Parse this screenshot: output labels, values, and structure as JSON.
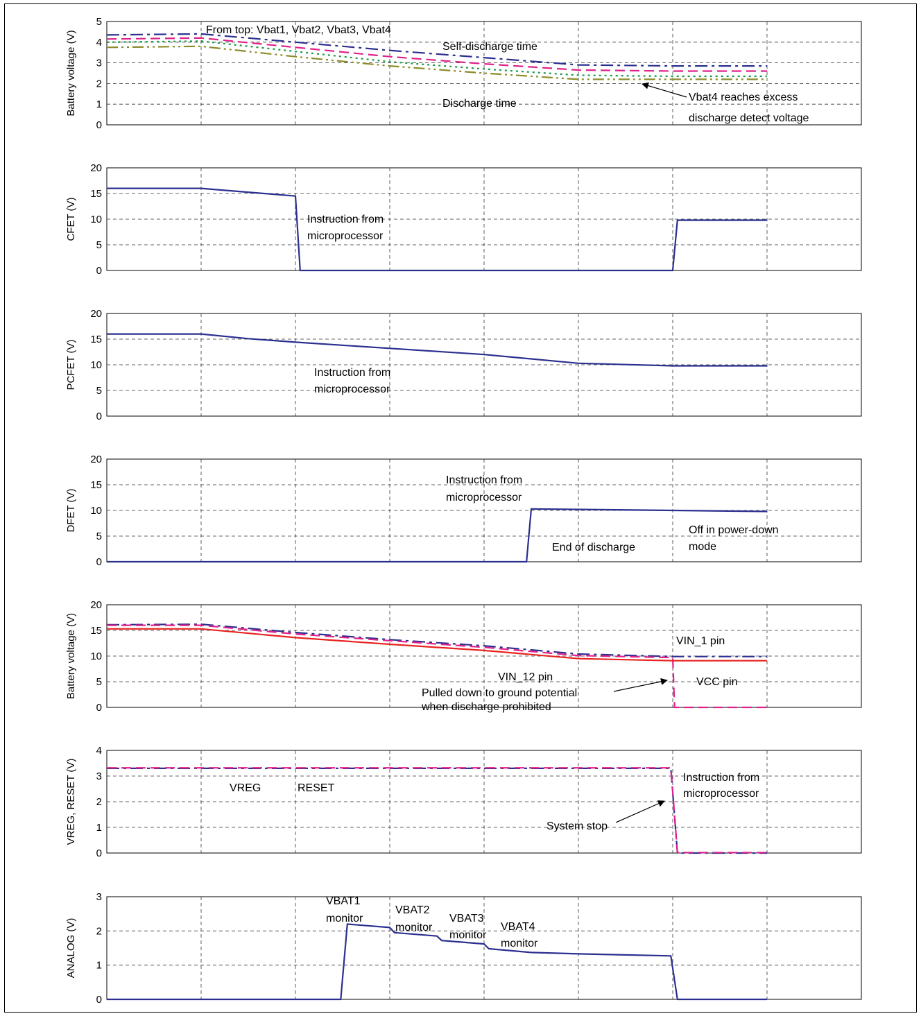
{
  "colors": {
    "navy": "#2b2f8f",
    "magenta": "#e0218a",
    "green": "#1a9a4a",
    "olive": "#8c8c2a",
    "red": "#e8231f",
    "grid": "#333333"
  },
  "chart_data": [
    {
      "type": "line",
      "ylabel": "Battery voltage (V)",
      "ylim": [
        0,
        5
      ],
      "yticks": [
        "0",
        "1",
        "2",
        "3",
        "4",
        "5"
      ],
      "x": [
        0,
        1,
        2,
        3,
        4,
        5,
        6,
        7
      ],
      "grid": true,
      "series": [
        {
          "name": "Vbat1",
          "color": "#2b2f8f",
          "style": "dashdot",
          "values": [
            4.35,
            4.4,
            4.0,
            3.6,
            3.25,
            2.9,
            2.85,
            2.85
          ]
        },
        {
          "name": "Vbat2",
          "color": "#e0218a",
          "style": "dash",
          "values": [
            4.15,
            4.2,
            3.75,
            3.3,
            2.95,
            2.65,
            2.6,
            2.6
          ]
        },
        {
          "name": "Vbat3",
          "color": "#1a9a4a",
          "style": "dot",
          "values": [
            4.0,
            4.05,
            3.55,
            3.05,
            2.7,
            2.4,
            2.35,
            2.35
          ]
        },
        {
          "name": "Vbat4",
          "color": "#8c8c2a",
          "style": "dashdotdot",
          "values": [
            3.75,
            3.8,
            3.3,
            2.85,
            2.5,
            2.2,
            2.2,
            2.2
          ]
        }
      ],
      "annotations": [
        "From top: Vbat1, Vbat2, Vbat3, Vbat4",
        "Self-discharge time",
        "Discharge time",
        "Vbat4 reaches excess",
        "discharge detect voltage"
      ]
    },
    {
      "type": "line",
      "ylabel": "CFET (V)",
      "ylim": [
        0,
        20
      ],
      "yticks": [
        "0",
        "5",
        "10",
        "15",
        "20"
      ],
      "grid": true,
      "series": [
        {
          "color": "#2b2f8f",
          "style": "solid",
          "x": [
            0,
            1,
            2,
            2.05,
            6,
            6.05,
            7
          ],
          "values": [
            16,
            16,
            14.5,
            0,
            0,
            9.8,
            9.8
          ]
        }
      ],
      "annotations": [
        "Instruction from",
        "microprocessor"
      ]
    },
    {
      "type": "line",
      "ylabel": "PCFET (V)",
      "ylim": [
        0,
        20
      ],
      "yticks": [
        "0",
        "5",
        "10",
        "15",
        "20"
      ],
      "grid": true,
      "series": [
        {
          "color": "#2b2f8f",
          "style": "solid",
          "x": [
            0,
            1,
            1.5,
            2,
            3,
            4,
            5,
            6,
            7
          ],
          "values": [
            16,
            16,
            15.1,
            14.4,
            13.2,
            12,
            10.3,
            9.8,
            9.8
          ]
        }
      ],
      "annotations": [
        "Instruction from",
        "microprocessor"
      ]
    },
    {
      "type": "line",
      "ylabel": "DFET (V)",
      "ylim": [
        0,
        20
      ],
      "yticks": [
        "0",
        "5",
        "10",
        "15",
        "20"
      ],
      "grid": true,
      "series": [
        {
          "color": "#2b2f8f",
          "style": "solid",
          "x": [
            0,
            4.45,
            4.5,
            7
          ],
          "values": [
            0,
            0,
            10.3,
            9.8
          ]
        }
      ],
      "annotations": [
        "Instruction from",
        "microprocessor",
        "End of discharge",
        "Off in power-down",
        "mode"
      ]
    },
    {
      "type": "line",
      "ylabel": "Battery voltage (V)",
      "ylim": [
        0,
        20
      ],
      "yticks": [
        "0",
        "5",
        "10",
        "15",
        "20"
      ],
      "grid": true,
      "series": [
        {
          "name": "VIN_1 pin",
          "color": "#2b2f8f",
          "style": "dashdot",
          "x": [
            0,
            1,
            2,
            3,
            4,
            5,
            6,
            7
          ],
          "values": [
            16.1,
            16.2,
            14.6,
            13.2,
            12.0,
            10.4,
            9.9,
            9.9
          ]
        },
        {
          "name": "VCC pin",
          "color": "#e0218a",
          "style": "dash",
          "x": [
            0,
            1,
            2,
            3,
            4,
            5,
            6,
            6.02,
            7
          ],
          "values": [
            16.0,
            16.0,
            14.3,
            13.0,
            11.7,
            10.1,
            9.7,
            0,
            0
          ]
        },
        {
          "name": "VIN_12 pin",
          "color": "#e8231f",
          "style": "solid",
          "x": [
            0,
            1,
            2,
            3,
            4,
            5,
            6,
            7
          ],
          "values": [
            15.3,
            15.3,
            13.6,
            12.3,
            11.1,
            9.5,
            9.1,
            9.1
          ]
        }
      ],
      "annotations": [
        "VIN_1 pin",
        "VIN_12 pin",
        "VCC pin",
        "Pulled down to ground potential",
        "when discharge prohibited"
      ]
    },
    {
      "type": "line",
      "ylabel": "VREG, RESET (V)",
      "ylim": [
        0,
        4
      ],
      "yticks": [
        "0",
        "1",
        "2",
        "3",
        "4"
      ],
      "grid": true,
      "series": [
        {
          "name": "VREG",
          "color": "#2b2f8f",
          "style": "dashdot",
          "x": [
            0,
            5.98,
            6.05,
            7
          ],
          "values": [
            3.3,
            3.3,
            0,
            0
          ]
        },
        {
          "name": "RESET",
          "color": "#e0218a",
          "style": "dash",
          "x": [
            0,
            5.98,
            6.05,
            7
          ],
          "values": [
            3.32,
            3.32,
            0.02,
            0.02
          ]
        }
      ],
      "annotations": [
        "VREG",
        "RESET",
        "Instruction from",
        "microprocessor",
        "System stop"
      ]
    },
    {
      "type": "line",
      "ylabel": "ANALOG (V)",
      "ylim": [
        0,
        3
      ],
      "yticks": [
        "0",
        "1",
        "2",
        "3"
      ],
      "grid": true,
      "series": [
        {
          "color": "#2b2f8f",
          "style": "solid",
          "x": [
            0,
            2.48,
            2.55,
            3.0,
            3.05,
            3.5,
            3.55,
            4.0,
            4.05,
            4.5,
            5.0,
            5.5,
            5.98,
            6.05,
            7
          ],
          "values": [
            0,
            0,
            2.2,
            2.1,
            1.95,
            1.85,
            1.72,
            1.62,
            1.48,
            1.37,
            1.33,
            1.3,
            1.27,
            0,
            0
          ]
        }
      ],
      "annotations": [
        "VBAT1",
        "monitor",
        "VBAT2",
        "monitor",
        "VBAT3",
        "monitor",
        "VBAT4",
        "monitor"
      ]
    }
  ]
}
